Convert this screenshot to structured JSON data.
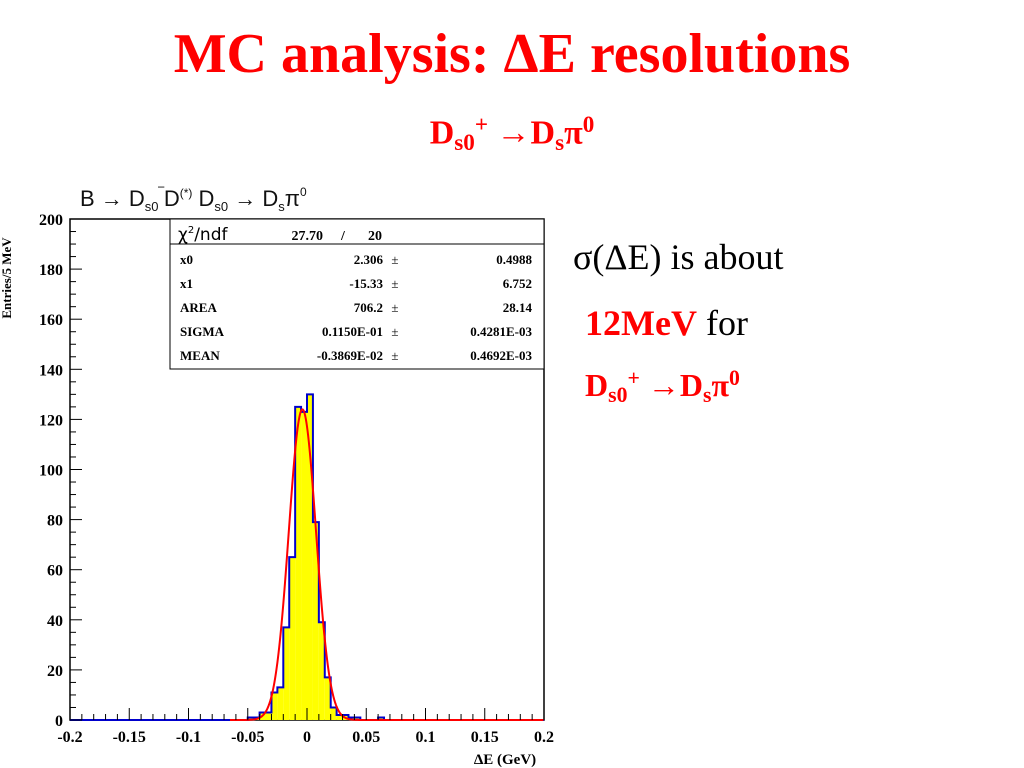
{
  "title": {
    "prefix": "MC analysis: ",
    "delta": "Δ",
    "suffix": "E resolutions"
  },
  "subtitle": {
    "d1": "D",
    "d1_sub": "s0",
    "d1_sup": "+",
    "arrow": "→",
    "d2": "D",
    "d2_sub": "s",
    "pi": "π",
    "pi_sup": "0"
  },
  "side_text": {
    "line1": "σ(ΔE) is about",
    "value": "12MeV",
    "for": " for",
    "decay": {
      "d1": "D",
      "d1_sub": "s0",
      "d1_sup": "+",
      "arrow": "→",
      "d2": "D",
      "d2_sub": "s",
      "pi": "π",
      "pi_sup": "0"
    }
  },
  "plot_header": {
    "part1": "B → D",
    "sub1": "s0",
    "bar": "‾",
    "part2": "D",
    "sup2": "(*)",
    "part3": " D",
    "sub3": "s0",
    "part4": " → D",
    "sub4": "s",
    "part5": "π",
    "sup5": "0"
  },
  "stats_box": {
    "header": {
      "chi": "χ",
      "chi_sup": "2",
      "ndf": "/ndf",
      "value": "27.70",
      "slash": "/",
      "ndf_value": "20"
    },
    "rows": [
      {
        "name": "x0",
        "value": "2.306",
        "pm": "±",
        "error": "0.4988"
      },
      {
        "name": "x1",
        "value": "-15.33",
        "pm": "±",
        "error": "6.752"
      },
      {
        "name": "AREA",
        "value": "706.2",
        "pm": "±",
        "error": "28.14"
      },
      {
        "name": "SIGMA",
        "value": "0.1150E-01",
        "pm": "±",
        "error": "0.4281E-03"
      },
      {
        "name": "MEAN",
        "value": "-0.3869E-02",
        "pm": "±",
        "error": "0.4692E-03"
      }
    ]
  },
  "chart_data": {
    "type": "bar",
    "xlabel": "ΔE (GeV)",
    "ylabel": "Entries/5 MeV",
    "xlim": [
      -0.2,
      0.2
    ],
    "ylim": [
      0,
      200
    ],
    "xticks": [
      "-0.2",
      "-0.15",
      "-0.1",
      "-0.05",
      "0",
      "0.05",
      "0.1",
      "0.15",
      "0.2"
    ],
    "yticks": [
      "0",
      "20",
      "40",
      "60",
      "80",
      "100",
      "120",
      "140",
      "160",
      "180",
      "200"
    ],
    "bin_width": 0.005,
    "bins_low_edges": [
      -0.2,
      -0.195,
      -0.19,
      -0.185,
      -0.18,
      -0.175,
      -0.17,
      -0.165,
      -0.16,
      -0.155,
      -0.15,
      -0.145,
      -0.14,
      -0.135,
      -0.13,
      -0.125,
      -0.12,
      -0.115,
      -0.11,
      -0.105,
      -0.1,
      -0.095,
      -0.09,
      -0.085,
      -0.08,
      -0.075,
      -0.07,
      -0.065,
      -0.06,
      -0.055,
      -0.05,
      -0.045,
      -0.04,
      -0.035,
      -0.03,
      -0.025,
      -0.02,
      -0.015,
      -0.01,
      -0.005,
      0.0,
      0.005,
      0.01,
      0.015,
      0.02,
      0.025,
      0.03,
      0.035,
      0.04,
      0.045,
      0.05,
      0.055,
      0.06,
      0.065,
      0.07,
      0.075,
      0.08,
      0.085,
      0.09,
      0.095,
      0.1,
      0.105,
      0.11,
      0.115,
      0.12,
      0.125,
      0.13,
      0.135,
      0.14,
      0.145,
      0.15,
      0.155,
      0.16,
      0.165,
      0.17,
      0.175,
      0.18,
      0.185,
      0.19,
      0.195
    ],
    "counts": [
      0,
      0,
      0,
      0,
      0,
      0,
      0,
      0,
      0,
      0,
      0,
      0,
      0,
      0,
      0,
      0,
      0,
      0,
      0,
      0,
      0,
      0,
      0,
      0,
      0,
      0,
      0,
      0,
      0,
      0,
      1,
      1,
      3,
      3,
      11,
      13,
      37,
      65,
      125,
      123,
      130,
      79,
      39,
      17,
      5,
      2,
      2,
      1,
      1,
      0,
      0,
      0,
      1,
      0,
      0,
      0,
      0,
      0,
      0,
      0,
      0,
      0,
      0,
      0,
      0,
      0,
      0,
      0,
      0,
      0,
      0,
      0,
      0,
      0,
      0,
      0,
      0,
      0,
      0,
      0
    ],
    "fit": {
      "function": "gaussian",
      "mean": -0.003869,
      "sigma": 0.0115,
      "peak": 124,
      "color": "#ff0000"
    },
    "fill_color": "#ffff00",
    "line_color": "#0000cc",
    "grid": false,
    "legend": "none"
  }
}
